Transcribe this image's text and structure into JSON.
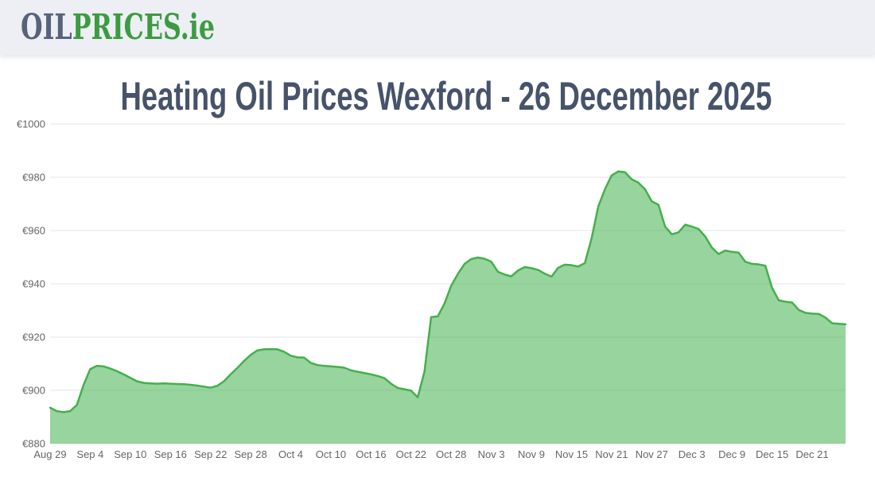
{
  "header": {
    "logo_part1": "OIL",
    "logo_part2": "PRICES",
    "logo_suffix": ".ie"
  },
  "title": "Heating Oil Prices Wexford - 26 December 2025",
  "chart_data": {
    "type": "area",
    "title": "Heating Oil Prices Wexford - 26 December 2025",
    "currency_prefix": "€",
    "ylim": [
      880,
      1000
    ],
    "y_tick_values": [
      880,
      900,
      920,
      940,
      960,
      980,
      1000
    ],
    "y_tick_labels": [
      "€880",
      "€900",
      "€920",
      "€940",
      "€960",
      "€980",
      "€1000"
    ],
    "x_unit": "day",
    "x_start_label": "Aug 29",
    "x_ticks": [
      {
        "label": "Aug 29",
        "day": 0
      },
      {
        "label": "Sep 4",
        "day": 6
      },
      {
        "label": "Sep 10",
        "day": 12
      },
      {
        "label": "Sep 16",
        "day": 18
      },
      {
        "label": "Sep 22",
        "day": 24
      },
      {
        "label": "Sep 28",
        "day": 30
      },
      {
        "label": "Oct 4",
        "day": 36
      },
      {
        "label": "Oct 10",
        "day": 42
      },
      {
        "label": "Oct 16",
        "day": 48
      },
      {
        "label": "Oct 22",
        "day": 54
      },
      {
        "label": "Oct 28",
        "day": 60
      },
      {
        "label": "Nov 3",
        "day": 66
      },
      {
        "label": "Nov 9",
        "day": 72
      },
      {
        "label": "Nov 15",
        "day": 78
      },
      {
        "label": "Nov 21",
        "day": 84
      },
      {
        "label": "Nov 27",
        "day": 90
      },
      {
        "label": "Dec 3",
        "day": 96
      },
      {
        "label": "Dec 9",
        "day": 102
      },
      {
        "label": "Dec 15",
        "day": 108
      },
      {
        "label": "Dec 21",
        "day": 114
      }
    ],
    "values": [
      893.5,
      892.2,
      891.8,
      892.2,
      894.5,
      902.0,
      908.0,
      909.2,
      909.0,
      908.2,
      907.2,
      906.0,
      904.7,
      903.4,
      902.8,
      902.6,
      902.5,
      902.6,
      902.5,
      902.4,
      902.3,
      902.1,
      901.8,
      901.4,
      901.0,
      901.7,
      903.4,
      906.0,
      908.4,
      911.0,
      913.3,
      915.0,
      915.4,
      915.5,
      915.4,
      914.5,
      913.0,
      912.4,
      912.3,
      910.3,
      909.5,
      909.2,
      909.0,
      908.8,
      908.5,
      907.5,
      907.0,
      906.5,
      906.0,
      905.4,
      904.6,
      902.5,
      900.9,
      900.4,
      899.9,
      897.4,
      907.0,
      927.5,
      927.8,
      932.6,
      939.3,
      943.7,
      947.5,
      949.3,
      949.9,
      949.4,
      948.3,
      944.5,
      943.5,
      942.8,
      945.0,
      946.3,
      945.9,
      945.2,
      943.8,
      942.7,
      946.0,
      947.2,
      947.0,
      946.5,
      947.8,
      957.0,
      969.0,
      975.5,
      980.7,
      982.2,
      981.9,
      979.3,
      978.0,
      975.5,
      971.0,
      969.7,
      961.5,
      958.6,
      959.3,
      962.2,
      961.5,
      960.6,
      957.8,
      953.6,
      951.2,
      952.5,
      952.0,
      951.7,
      948.3,
      947.5,
      947.3,
      946.8,
      938.5,
      933.8,
      933.3,
      933.0,
      930.2,
      929.1,
      928.8,
      928.7,
      927.3,
      925.2,
      925.0,
      924.8
    ],
    "grid": true,
    "legend": false,
    "colors": {
      "area_fill": "rgba(68,176,76,0.55)",
      "line": "#44b04c",
      "gridline": "#e6e6e6",
      "axis_text": "#666666"
    }
  }
}
